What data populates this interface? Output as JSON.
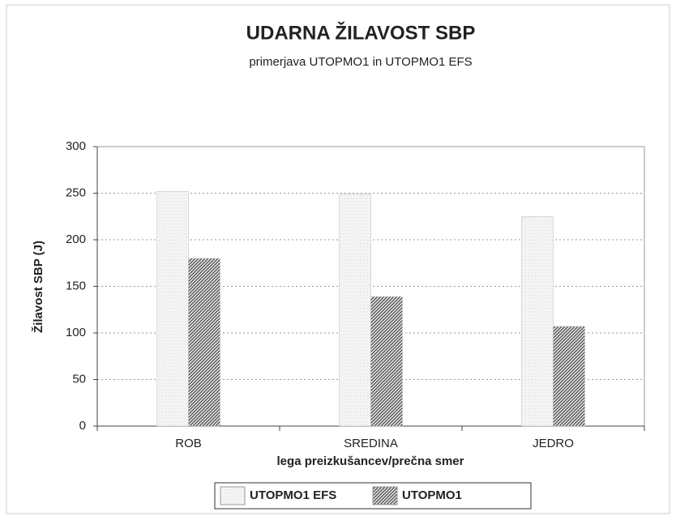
{
  "chart_data": {
    "type": "bar",
    "title": "UDARNA ŽILAVOST SBP",
    "subtitle": "primerjava UTOPMO1 in UTOPMO1 EFS",
    "y_label": "Žilavost  SBP (J)",
    "x_label": "lega preizkušancev/prečna smer",
    "categories": [
      "ROB",
      "SREDINA",
      "JEDRO"
    ],
    "series": [
      {
        "name": "UTOPMO1 EFS",
        "color": "#e4e4e4",
        "values": [
          252,
          249,
          225
        ]
      },
      {
        "name": "UTOPMO1",
        "color": "#5a5a5a",
        "values": [
          180,
          139,
          107
        ]
      }
    ],
    "ylim": [
      0,
      300
    ],
    "yticks": [
      0,
      50,
      100,
      150,
      200,
      250,
      300
    ],
    "grid": true
  }
}
